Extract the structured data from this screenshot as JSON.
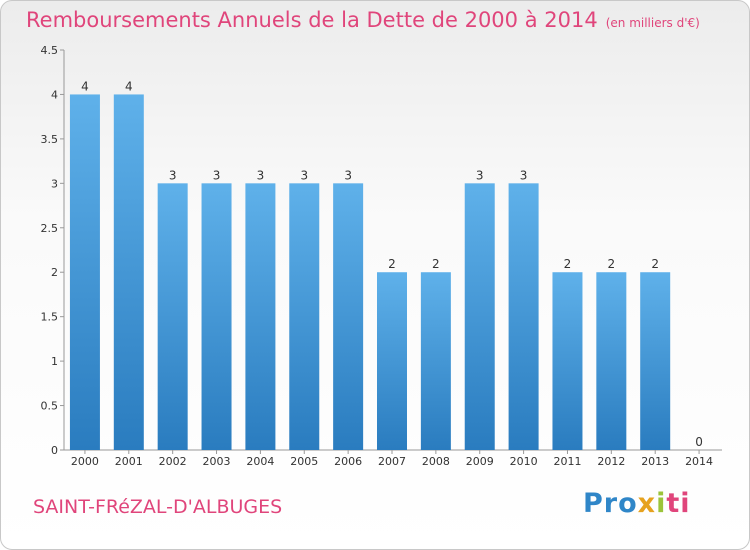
{
  "header": {
    "title": "Remboursements Annuels de la Dette de 2000 à 2014",
    "subtitle": "(en milliers d'€)"
  },
  "footer": {
    "town": "SAINT-FRéZAL-D'ALBUGES",
    "logo_parts": [
      "Pro",
      "x",
      "i",
      "ti"
    ]
  },
  "colors": {
    "title": "#e0457b",
    "bar_top": "#5fb1ea",
    "bar_bottom": "#2a7cbf"
  },
  "chart_data": {
    "type": "bar",
    "categories": [
      "2000",
      "2001",
      "2002",
      "2003",
      "2004",
      "2005",
      "2006",
      "2007",
      "2008",
      "2009",
      "2010",
      "2011",
      "2012",
      "2013",
      "2014"
    ],
    "values": [
      4,
      4,
      3,
      3,
      3,
      3,
      3,
      2,
      2,
      3,
      3,
      2,
      2,
      2,
      0
    ],
    "data_labels": [
      "4",
      "4",
      "3",
      "3",
      "3",
      "3",
      "3",
      "2",
      "2",
      "3",
      "3",
      "2",
      "2",
      "2",
      "0"
    ],
    "yticks": [
      "0",
      "0.5",
      "1",
      "1.5",
      "2",
      "2.5",
      "3",
      "3.5",
      "4",
      "4.5"
    ],
    "ylim": [
      0,
      4.5
    ],
    "grid": false
  }
}
